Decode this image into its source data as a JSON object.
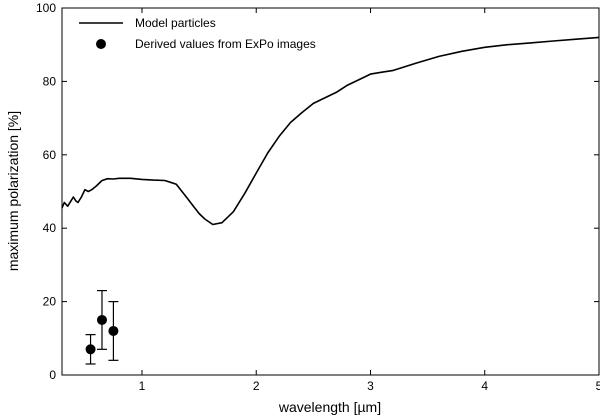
{
  "chart_data": {
    "type": "line",
    "title": "",
    "xlabel": "wavelength [µm]",
    "ylabel": "maximum polarization [%]",
    "xlim": [
      0.3,
      5
    ],
    "ylim": [
      0,
      100
    ],
    "xticks": [
      1,
      2,
      3,
      4,
      5
    ],
    "yticks": [
      0,
      20,
      40,
      60,
      80,
      100
    ],
    "grid": false,
    "legend_position": "top-left",
    "series": [
      {
        "name": "Model particles",
        "kind": "line",
        "color": "#000000",
        "x": [
          0.3,
          0.32,
          0.35,
          0.38,
          0.4,
          0.42,
          0.44,
          0.47,
          0.5,
          0.53,
          0.56,
          0.6,
          0.65,
          0.7,
          0.75,
          0.8,
          0.9,
          1.0,
          1.1,
          1.2,
          1.25,
          1.3,
          1.35,
          1.4,
          1.45,
          1.5,
          1.55,
          1.62,
          1.7,
          1.8,
          1.9,
          2.0,
          2.1,
          2.2,
          2.3,
          2.4,
          2.5,
          2.6,
          2.7,
          2.8,
          2.9,
          3.0,
          3.1,
          3.2,
          3.4,
          3.6,
          3.8,
          4.0,
          4.2,
          4.4,
          4.6,
          4.8,
          5.0
        ],
        "y": [
          45.5,
          47,
          46,
          47.5,
          48.5,
          47.5,
          47,
          48.5,
          50.5,
          50,
          50.5,
          51.5,
          53,
          53.5,
          53.4,
          53.6,
          53.6,
          53.3,
          53.1,
          53,
          52.5,
          52,
          50,
          48,
          46,
          44,
          42.5,
          41,
          41.5,
          44.5,
          49.5,
          55,
          60.5,
          65,
          68.8,
          71.5,
          74,
          75.5,
          77,
          79,
          80.5,
          82,
          82.5,
          83,
          85,
          86.8,
          88.2,
          89.3,
          90,
          90.5,
          91,
          91.5,
          92
        ]
      },
      {
        "name": "Derived values from ExPo images",
        "kind": "scatter",
        "color": "#000000",
        "points": [
          {
            "x": 0.55,
            "y": 7,
            "err_low": 3,
            "err_high": 11
          },
          {
            "x": 0.65,
            "y": 15,
            "err_low": 7,
            "err_high": 23
          },
          {
            "x": 0.75,
            "y": 12,
            "err_low": 4,
            "err_high": 20
          }
        ]
      }
    ]
  }
}
